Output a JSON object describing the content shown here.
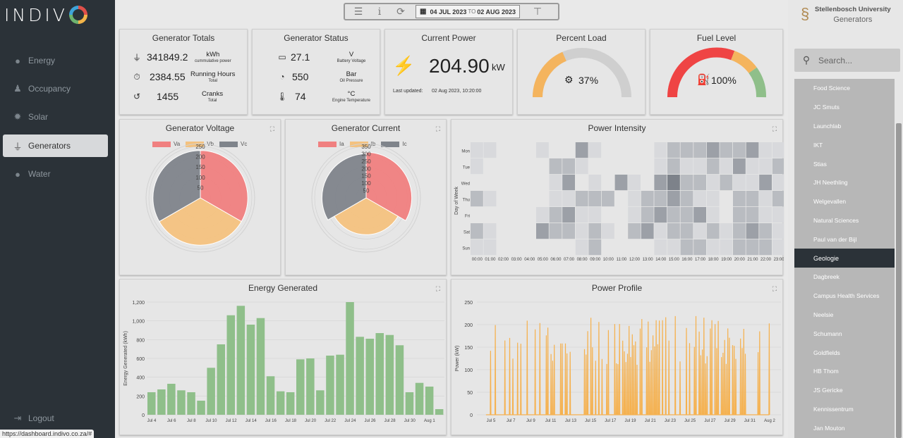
{
  "colors": {
    "sidebar_bg": "#2b3238",
    "red": "#f08080",
    "orange": "#f4c27f",
    "grey": "#7f848b",
    "green": "#8fbf8a",
    "line_orange": "#f5b14f"
  },
  "brand": {
    "logo_text": "INDIV"
  },
  "sidebar": {
    "items": [
      {
        "label": "Energy",
        "icon": "lightbulb-icon",
        "glyph": "💡"
      },
      {
        "label": "Occupancy",
        "icon": "users-icon",
        "glyph": "👥"
      },
      {
        "label": "Solar",
        "icon": "sun-icon",
        "glyph": "✹"
      },
      {
        "label": "Generators",
        "icon": "plug-icon",
        "glyph": "🔌"
      },
      {
        "label": "Water",
        "icon": "water-drop-icon",
        "glyph": "💧"
      }
    ],
    "logout": "Logout",
    "status_url": "https://dashboard.indivo.co.za/#"
  },
  "toolbar": {
    "date_from": "04 JUL 2023",
    "to": "TO",
    "date_to": "02 AUG 2023"
  },
  "header": {
    "org": "Stellenbosch University",
    "section": "Generators"
  },
  "search": {
    "placeholder": "Search..."
  },
  "buildings": [
    "Food Science",
    "JC Smuts",
    "Launchlab",
    "IKT",
    "Stias",
    "JH Neethling",
    "Welgevallen",
    "Natural Sciences",
    "Paul van der Bijl",
    "Geologie",
    "Dagbreek",
    "Campus Health Services",
    "Neelsie",
    "Schumann",
    "Goldfields",
    "HB Thom",
    "JS Gericke",
    "Kennissentrum",
    "Jan Mouton"
  ],
  "selected_building": "Geologie",
  "totals": {
    "title": "Generator Totals",
    "rows": [
      {
        "value": "341849.2",
        "unit": "kWh",
        "sub": "cummulative power"
      },
      {
        "value": "2384.55",
        "unit": "Running Hours",
        "sub": "Total"
      },
      {
        "value": "1455",
        "unit": "Cranks",
        "sub": "Total"
      }
    ]
  },
  "status": {
    "title": "Generator Status",
    "rows": [
      {
        "value": "27.1",
        "unit": "V",
        "sub": "Battery Voltage"
      },
      {
        "value": "550",
        "unit": "Bar",
        "sub": "Oil Pressure"
      },
      {
        "value": "74",
        "unit": "°C",
        "sub": "Engine Temperature"
      }
    ]
  },
  "current_power": {
    "title": "Current Power",
    "value": "204.90",
    "unit": "kW",
    "updated_label": "Last updated:",
    "updated_value": "02 Aug 2023, 10:20:00"
  },
  "percent_load": {
    "title": "Percent Load",
    "value": 37,
    "label": "37%"
  },
  "fuel_level": {
    "title": "Fuel Level",
    "value": 100,
    "label": "100%"
  },
  "voltage": {
    "title": "Generator Voltage",
    "legend": [
      "Va",
      "Vb",
      "Vc"
    ],
    "ticks": [
      "250",
      "200",
      "150",
      "100",
      "50"
    ],
    "max": 250,
    "values": [
      230,
      230,
      230
    ]
  },
  "current": {
    "title": "Generator Current",
    "legend": [
      "Ia",
      "Ib",
      "Ic"
    ],
    "ticks": [
      "350",
      "300",
      "250",
      "200",
      "150",
      "100",
      "50"
    ],
    "max": 350,
    "values": [
      310,
      250,
      300
    ]
  },
  "intensity": {
    "title": "Power Intensity",
    "ylabel": "Day of Week",
    "days": [
      "Mon",
      "Tue",
      "Wed",
      "Thu",
      "Fri",
      "Sat",
      "Sun"
    ],
    "hours": [
      "00:00",
      "01:00",
      "02:00",
      "03:00",
      "04:00",
      "05:00",
      "06:00",
      "07:00",
      "08:00",
      "09:00",
      "10:00",
      "11:00",
      "12:00",
      "13:00",
      "14:00",
      "15:00",
      "16:00",
      "17:00",
      "18:00",
      "19:00",
      "20:00",
      "21:00",
      "22:00",
      "23:00"
    ],
    "grid": [
      [
        1,
        1,
        0,
        0,
        0,
        1,
        0,
        0,
        3,
        1,
        0,
        0,
        0,
        0,
        1,
        2,
        2,
        2,
        3,
        2,
        2,
        3,
        1,
        1
      ],
      [
        1,
        0,
        0,
        0,
        0,
        0,
        2,
        2,
        1,
        0,
        0,
        0,
        0,
        0,
        1,
        2,
        1,
        1,
        2,
        1,
        3,
        1,
        1,
        2
      ],
      [
        0,
        0,
        0,
        0,
        0,
        0,
        1,
        3,
        0,
        1,
        0,
        3,
        1,
        0,
        3,
        4,
        2,
        2,
        1,
        2,
        1,
        1,
        3,
        1
      ],
      [
        2,
        1,
        0,
        0,
        0,
        0,
        1,
        1,
        2,
        2,
        2,
        0,
        1,
        2,
        2,
        3,
        2,
        1,
        1,
        0,
        2,
        2,
        1,
        2
      ],
      [
        0,
        0,
        0,
        0,
        0,
        1,
        2,
        3,
        1,
        1,
        0,
        0,
        1,
        2,
        3,
        2,
        2,
        3,
        1,
        0,
        2,
        2,
        1,
        1
      ],
      [
        2,
        1,
        0,
        0,
        0,
        3,
        2,
        2,
        1,
        2,
        1,
        0,
        2,
        3,
        1,
        2,
        2,
        1,
        2,
        1,
        2,
        3,
        2,
        1
      ],
      [
        1,
        1,
        0,
        0,
        0,
        0,
        0,
        0,
        1,
        2,
        0,
        0,
        0,
        0,
        1,
        1,
        2,
        2,
        1,
        1,
        2,
        2,
        2,
        1
      ]
    ]
  },
  "power_profile": {
    "title": "Power Profile",
    "ylabel": "Power (kW)",
    "yticks": [
      "0",
      "50",
      "100",
      "150",
      "200",
      "250"
    ],
    "xticks": [
      "Jul 5",
      "Jul 7",
      "Jul 9",
      "Jul 11",
      "Jul 13",
      "Jul 15",
      "Jul 17",
      "Jul 19",
      "Jul 21",
      "Jul 23",
      "Jul 25",
      "Jul 27",
      "Jul 29",
      "Jul 31",
      "Aug 2"
    ]
  },
  "chart_data": {
    "type": "bar",
    "title": "Energy Generated",
    "xlabel": "",
    "ylabel": "Energy Generated (kWh)",
    "ylim": [
      0,
      1200
    ],
    "yticks": [
      "0",
      "200",
      "400",
      "600",
      "800",
      "1,000",
      "1,200"
    ],
    "categories": [
      "Jul 4",
      "Jul 5",
      "Jul 6",
      "Jul 7",
      "Jul 8",
      "Jul 9",
      "Jul 10",
      "Jul 11",
      "Jul 12",
      "Jul 13",
      "Jul 14",
      "Jul 15",
      "Jul 16",
      "Jul 17",
      "Jul 18",
      "Jul 19",
      "Jul 20",
      "Jul 21",
      "Jul 22",
      "Jul 23",
      "Jul 24",
      "Jul 25",
      "Jul 26",
      "Jul 27",
      "Jul 28",
      "Jul 29",
      "Jul 30",
      "Jul 31",
      "Aug 1",
      "Aug 2"
    ],
    "xtick_labels": [
      "Jul 4",
      "Jul 6",
      "Jul 8",
      "Jul 10",
      "Jul 12",
      "Jul 14",
      "Jul 16",
      "Jul 18",
      "Jul 20",
      "Jul 22",
      "Jul 24",
      "Jul 26",
      "Jul 28",
      "Jul 30",
      "Aug 1"
    ],
    "values": [
      240,
      270,
      330,
      260,
      240,
      150,
      500,
      750,
      1060,
      1160,
      960,
      1030,
      410,
      250,
      240,
      590,
      600,
      260,
      630,
      640,
      1200,
      830,
      810,
      870,
      850,
      740,
      240,
      340,
      300,
      60
    ]
  }
}
